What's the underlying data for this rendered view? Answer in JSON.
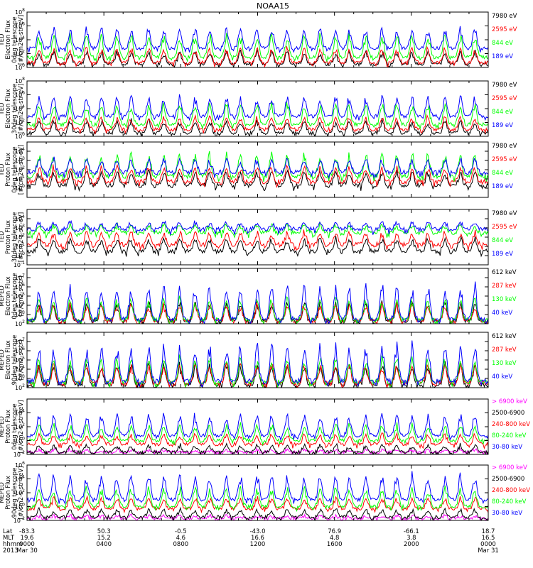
{
  "title": "NOAA15",
  "colors": {
    "black": "#000000",
    "red": "#ff0000",
    "green": "#00ff00",
    "blue": "#0000ff",
    "magenta": "#ff00ff"
  },
  "chart_data": [
    {
      "type": "line",
      "ylabel": [
        "TED",
        "Electron Flux",
        "0deg telescope",
        "[#/cm2-s-str-eV]"
      ],
      "yscale": "log",
      "ylim": [
        1,
        100000000.0
      ],
      "yticks": [
        {
          "v": 1,
          "label": "10^0"
        },
        {
          "v": 100,
          "label": "10^2"
        },
        {
          "v": 10000.0,
          "label": "10^4"
        },
        {
          "v": 1000000.0,
          "label": "10^6"
        },
        {
          "v": 100000000.0,
          "label": "10^8"
        }
      ],
      "series": [
        {
          "name": "7980 eV",
          "color": "#000000",
          "base": 3,
          "peak": 300
        },
        {
          "name": "2595 eV",
          "color": "#ff0000",
          "base": 5,
          "peak": 1000
        },
        {
          "name": "844 eV",
          "color": "#00ff00",
          "base": 30,
          "peak": 100000.0
        },
        {
          "name": "189 eV",
          "color": "#0000ff",
          "base": 600,
          "peak": 1000000.0
        }
      ]
    },
    {
      "type": "line",
      "ylabel": [
        "TED",
        "Electron Flux",
        "30deg telescope",
        "[#/cm2-s-str-eV]"
      ],
      "yscale": "log",
      "ylim": [
        1,
        100000000.0
      ],
      "yticks": [
        {
          "v": 1,
          "label": "10^0"
        },
        {
          "v": 100,
          "label": "10^2"
        },
        {
          "v": 10000.0,
          "label": "10^4"
        },
        {
          "v": 1000000.0,
          "label": "10^6"
        },
        {
          "v": 100000000.0,
          "label": "10^8"
        }
      ],
      "series": [
        {
          "name": "7980 eV",
          "color": "#000000",
          "base": 3,
          "peak": 300
        },
        {
          "name": "2595 eV",
          "color": "#ff0000",
          "base": 10,
          "peak": 1000
        },
        {
          "name": "844 eV",
          "color": "#00ff00",
          "base": 50,
          "peak": 100000.0
        },
        {
          "name": "189 eV",
          "color": "#0000ff",
          "base": 800,
          "peak": 1000000.0
        }
      ]
    },
    {
      "type": "line",
      "ylabel": [
        "TED",
        "Proton Flux",
        "0deg telescope",
        "[#/cm2-s-str-eV]"
      ],
      "yscale": "log",
      "ylim": [
        0.1,
        100000.0
      ],
      "yticks": [
        {
          "v": 1,
          "label": "10^0"
        },
        {
          "v": 10,
          "label": "10^1"
        },
        {
          "v": 100,
          "label": "10^2"
        },
        {
          "v": 1000,
          "label": "10^3"
        },
        {
          "v": 10000.0,
          "label": "10^4"
        }
      ],
      "series": [
        {
          "name": "7980 eV",
          "color": "#000000",
          "base": 2,
          "peak": 100
        },
        {
          "name": "2595 eV",
          "color": "#ff0000",
          "base": 5,
          "peak": 300
        },
        {
          "name": "844 eV",
          "color": "#00ff00",
          "base": 20,
          "peak": 10000.0
        },
        {
          "name": "189 eV",
          "color": "#0000ff",
          "base": 50,
          "peak": 2000
        }
      ]
    },
    {
      "type": "line",
      "ylabel": [
        "TED",
        "Proton Flux",
        "30deg telescope",
        "[#/cm2-s-str-eV]"
      ],
      "yscale": "log",
      "ylim": [
        0.1,
        100000.0
      ],
      "yticks": [
        {
          "v": 0.1,
          "label": "10^-1"
        },
        {
          "v": 1,
          "label": "10^0"
        },
        {
          "v": 10,
          "label": "10^1"
        },
        {
          "v": 100,
          "label": "10^2"
        },
        {
          "v": 1000,
          "label": "10^3"
        },
        {
          "v": 10000.0,
          "label": "10^4"
        }
      ],
      "series": [
        {
          "name": "7980 eV",
          "color": "#000000",
          "base": 3,
          "peak": 100
        },
        {
          "name": "2595 eV",
          "color": "#ff0000",
          "base": 15,
          "peak": 500
        },
        {
          "name": "844 eV",
          "color": "#00ff00",
          "base": 300,
          "peak": 3000
        },
        {
          "name": "189 eV",
          "color": "#0000ff",
          "base": 700,
          "peak": 5000
        }
      ]
    },
    {
      "type": "line",
      "ylabel": [
        "MEPED",
        "Electron Flux",
        "0deg telescope",
        "[#/cm2-s-str]"
      ],
      "yscale": "log",
      "ylim": [
        100,
        100000000.0
      ],
      "yticks": [
        {
          "v": 100,
          "label": "10^2"
        },
        {
          "v": 1000,
          "label": "10^3"
        },
        {
          "v": 10000.0,
          "label": "10^4"
        },
        {
          "v": 100000.0,
          "label": "10^5"
        },
        {
          "v": 1000000.0,
          "label": "10^6"
        },
        {
          "v": 10000000.0,
          "label": "10^7"
        }
      ],
      "series": [
        {
          "name": "612 keV",
          "color": "#000000",
          "base": 200,
          "peak": 30000.0
        },
        {
          "name": "287 keV",
          "color": "#ff0000",
          "base": 200,
          "peak": 20000.0
        },
        {
          "name": "130 keV",
          "color": "#00ff00",
          "base": 250,
          "peak": 100000.0
        },
        {
          "name": "40 keV",
          "color": "#0000ff",
          "base": 300,
          "peak": 3000000.0
        }
      ]
    },
    {
      "type": "line",
      "ylabel": [
        "MEPED",
        "Electron Flux",
        "90deg telescope",
        "[#/cm2-s-str]"
      ],
      "yscale": "log",
      "ylim": [
        100,
        100000000.0
      ],
      "yticks": [
        {
          "v": 100,
          "label": "10^2"
        },
        {
          "v": 1000,
          "label": "10^3"
        },
        {
          "v": 10000.0,
          "label": "10^4"
        },
        {
          "v": 100000.0,
          "label": "10^5"
        },
        {
          "v": 1000000.0,
          "label": "10^6"
        },
        {
          "v": 10000000.0,
          "label": "10^7"
        }
      ],
      "series": [
        {
          "name": "612 keV",
          "color": "#000000",
          "base": 200,
          "peak": 50000.0
        },
        {
          "name": "287 keV",
          "color": "#ff0000",
          "base": 300,
          "peak": 50000.0
        },
        {
          "name": "130 keV",
          "color": "#00ff00",
          "base": 400,
          "peak": 300000.0
        },
        {
          "name": "40 keV",
          "color": "#0000ff",
          "base": 500,
          "peak": 10000000.0
        }
      ]
    },
    {
      "type": "line",
      "ylabel": [
        "MEPED",
        "Proton Flux",
        "0deg telescope",
        "[#/cm2-s-str-keV]"
      ],
      "yscale": "log",
      "ylim": [
        0.01,
        1000000.0
      ],
      "yticks": [
        {
          "v": 0.01,
          "label": "10^-2"
        },
        {
          "v": 1,
          "label": "10^0"
        },
        {
          "v": 100,
          "label": "10^2"
        },
        {
          "v": 10000.0,
          "label": "10^4"
        }
      ],
      "series": [
        {
          "name": "> 6900 keV",
          "color": "#ff00ff",
          "base": 0.02,
          "peak": 0.05
        },
        {
          "name": "2500-6900",
          "color": "#000000",
          "base": 0.02,
          "peak": 0.3
        },
        {
          "name": "240-800 keV",
          "color": "#ff0000",
          "base": 0.3,
          "peak": 10
        },
        {
          "name": "80-240 keV",
          "color": "#00ff00",
          "base": 1,
          "peak": 300
        },
        {
          "name": "30-80 keV",
          "color": "#0000ff",
          "base": 5,
          "peak": 10000.0
        }
      ]
    },
    {
      "type": "line",
      "ylabel": [
        "MEPED",
        "Proton Flux",
        "90deg telescope",
        "[#/cm2-s-str-keV]"
      ],
      "yscale": "log",
      "ylim": [
        0.01,
        1000000.0
      ],
      "yticks": [
        {
          "v": 0.01,
          "label": "10^-2"
        },
        {
          "v": 1,
          "label": "10^0"
        },
        {
          "v": 100,
          "label": "10^2"
        },
        {
          "v": 10000.0,
          "label": "10^4"
        },
        {
          "v": 1000000.0,
          "label": "10^6"
        }
      ],
      "series": [
        {
          "name": "> 6900 keV",
          "color": "#ff00ff",
          "base": 0.02,
          "peak": 0.05
        },
        {
          "name": "2500-6900",
          "color": "#000000",
          "base": 0.03,
          "peak": 0.5
        },
        {
          "name": "240-800 keV",
          "color": "#ff0000",
          "base": 0.5,
          "peak": 30
        },
        {
          "name": "80-240 keV",
          "color": "#00ff00",
          "base": 1,
          "peak": 1000
        },
        {
          "name": "30-80 keV",
          "color": "#0000ff",
          "base": 10,
          "peak": 100000.0
        }
      ]
    }
  ],
  "x_axis": {
    "row_labels": [
      "Lat",
      "MLT",
      "hhmm",
      "2013"
    ],
    "ticks": [
      {
        "lat": "-83.3",
        "mlt": "19.6",
        "hhmm": "0000",
        "date": "Mar 30"
      },
      {
        "lat": "50.3",
        "mlt": "15.2",
        "hhmm": "0400",
        "date": ""
      },
      {
        "lat": "-0.5",
        "mlt": "4.6",
        "hhmm": "0800",
        "date": ""
      },
      {
        "lat": "-43.0",
        "mlt": "16.6",
        "hhmm": "1200",
        "date": ""
      },
      {
        "lat": "76.9",
        "mlt": "4.8",
        "hhmm": "1600",
        "date": ""
      },
      {
        "lat": "-66.1",
        "mlt": "3.8",
        "hhmm": "2000",
        "date": ""
      },
      {
        "lat": "18.7",
        "mlt": "16.5",
        "hhmm": "0000",
        "date": "Mar 31"
      }
    ]
  }
}
